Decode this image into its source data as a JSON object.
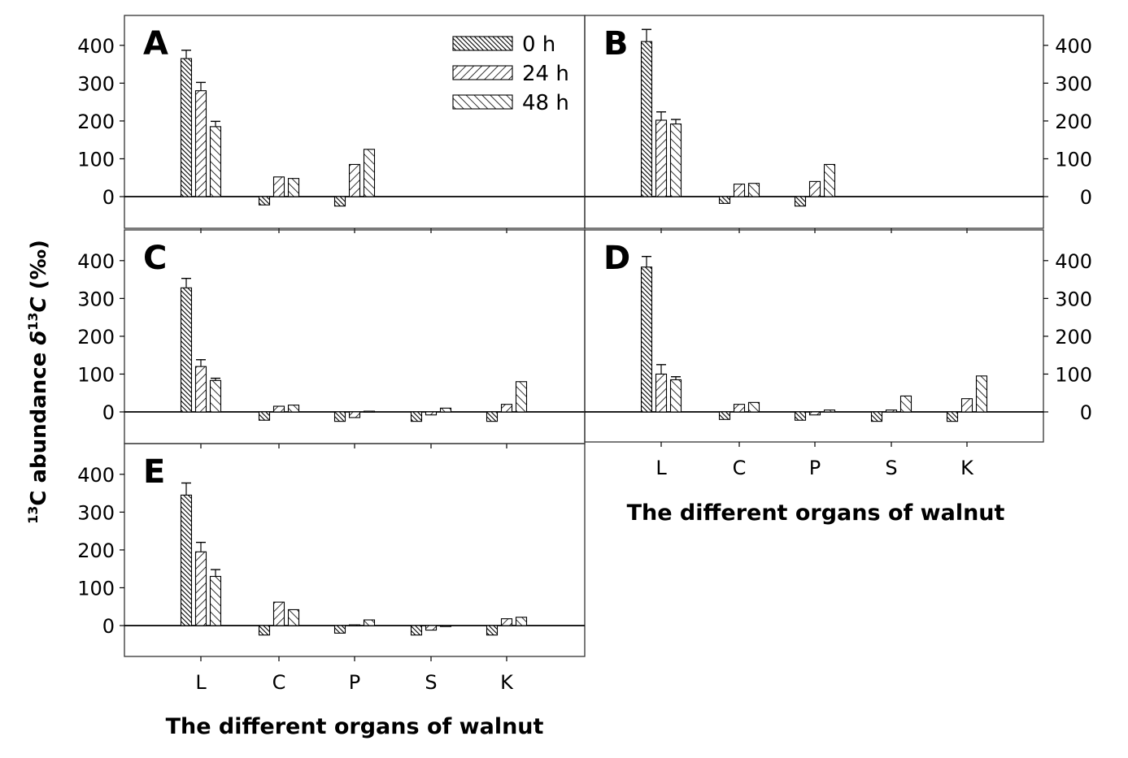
{
  "figure": {
    "ylabel_sup": "13",
    "ylabel_main": "C abundance ",
    "ylabel_delta": "δ",
    "ylabel_sup2": "13",
    "ylabel_c": "C",
    "ylabel_unit": " (‰)",
    "xlabel": "The different organs of walnut"
  },
  "legend": [
    {
      "label": "0 h",
      "pattern": "dense"
    },
    {
      "label": "24 h",
      "pattern": "fwd"
    },
    {
      "label": "48 h",
      "pattern": "back"
    }
  ],
  "chart_data": [
    {
      "type": "bar",
      "panel": "A",
      "categories": [
        "L",
        "C",
        "P",
        "S",
        "K"
      ],
      "series": [
        {
          "name": "0 h",
          "values": [
            365,
            -22,
            -25,
            null,
            null
          ],
          "errors": [
            22,
            0,
            0,
            null,
            null
          ]
        },
        {
          "name": "24 h",
          "values": [
            280,
            52,
            85,
            null,
            null
          ],
          "errors": [
            22,
            0,
            0,
            null,
            null
          ]
        },
        {
          "name": "48 h",
          "values": [
            185,
            48,
            125,
            null,
            null
          ],
          "errors": [
            14,
            0,
            0,
            null,
            null
          ]
        }
      ],
      "yticks": [
        0,
        100,
        200,
        300,
        400
      ],
      "ylim": [
        -85,
        478
      ],
      "grid": false,
      "legend": "top-right"
    },
    {
      "type": "bar",
      "panel": "B",
      "categories": [
        "L",
        "C",
        "P",
        "S",
        "K"
      ],
      "series": [
        {
          "name": "0 h",
          "values": [
            410,
            -18,
            -25,
            null,
            null
          ],
          "errors": [
            32,
            0,
            0,
            null,
            null
          ]
        },
        {
          "name": "24 h",
          "values": [
            202,
            33,
            40,
            null,
            null
          ],
          "errors": [
            22,
            0,
            0,
            null,
            null
          ]
        },
        {
          "name": "48 h",
          "values": [
            192,
            35,
            85,
            null,
            null
          ],
          "errors": [
            12,
            0,
            0,
            null,
            null
          ]
        }
      ],
      "yticks": [
        0,
        100,
        200,
        300,
        400
      ],
      "ylim": [
        -85,
        478
      ]
    },
    {
      "type": "bar",
      "panel": "C",
      "categories": [
        "L",
        "C",
        "P",
        "S",
        "K"
      ],
      "series": [
        {
          "name": "0 h",
          "values": [
            328,
            -22,
            -25,
            -25,
            -25
          ],
          "errors": [
            25,
            0,
            0,
            0,
            0
          ]
        },
        {
          "name": "24 h",
          "values": [
            120,
            15,
            -15,
            -8,
            20
          ],
          "errors": [
            18,
            0,
            0,
            0,
            0
          ]
        },
        {
          "name": "48 h",
          "values": [
            83,
            18,
            2,
            10,
            80
          ],
          "errors": [
            6,
            0,
            0,
            0,
            0
          ]
        }
      ],
      "yticks": [
        0,
        100,
        200,
        300,
        400
      ],
      "ylim": [
        -85,
        478
      ]
    },
    {
      "type": "bar",
      "panel": "D",
      "categories": [
        "L",
        "C",
        "P",
        "S",
        "K"
      ],
      "series": [
        {
          "name": "0 h",
          "values": [
            383,
            -20,
            -22,
            -25,
            -25
          ],
          "errors": [
            28,
            0,
            0,
            0,
            0
          ]
        },
        {
          "name": "24 h",
          "values": [
            100,
            20,
            -8,
            5,
            35
          ],
          "errors": [
            25,
            0,
            0,
            0,
            0
          ]
        },
        {
          "name": "48 h",
          "values": [
            85,
            25,
            5,
            42,
            95
          ],
          "errors": [
            8,
            0,
            0,
            0,
            0
          ]
        }
      ],
      "yticks": [
        0,
        100,
        200,
        300,
        400
      ],
      "ylim": [
        -85,
        478
      ]
    },
    {
      "type": "bar",
      "panel": "E",
      "categories": [
        "L",
        "C",
        "P",
        "S",
        "K"
      ],
      "series": [
        {
          "name": "0 h",
          "values": [
            345,
            -25,
            -20,
            -25,
            -25
          ],
          "errors": [
            32,
            0,
            0,
            0,
            0
          ]
        },
        {
          "name": "24 h",
          "values": [
            195,
            62,
            2,
            -12,
            18
          ],
          "errors": [
            25,
            0,
            0,
            0,
            0
          ]
        },
        {
          "name": "48 h",
          "values": [
            130,
            42,
            15,
            0,
            22
          ],
          "errors": [
            18,
            0,
            0,
            0,
            0
          ]
        }
      ],
      "yticks": [
        0,
        100,
        200,
        300,
        400
      ],
      "ylim": [
        -85,
        478
      ]
    }
  ]
}
